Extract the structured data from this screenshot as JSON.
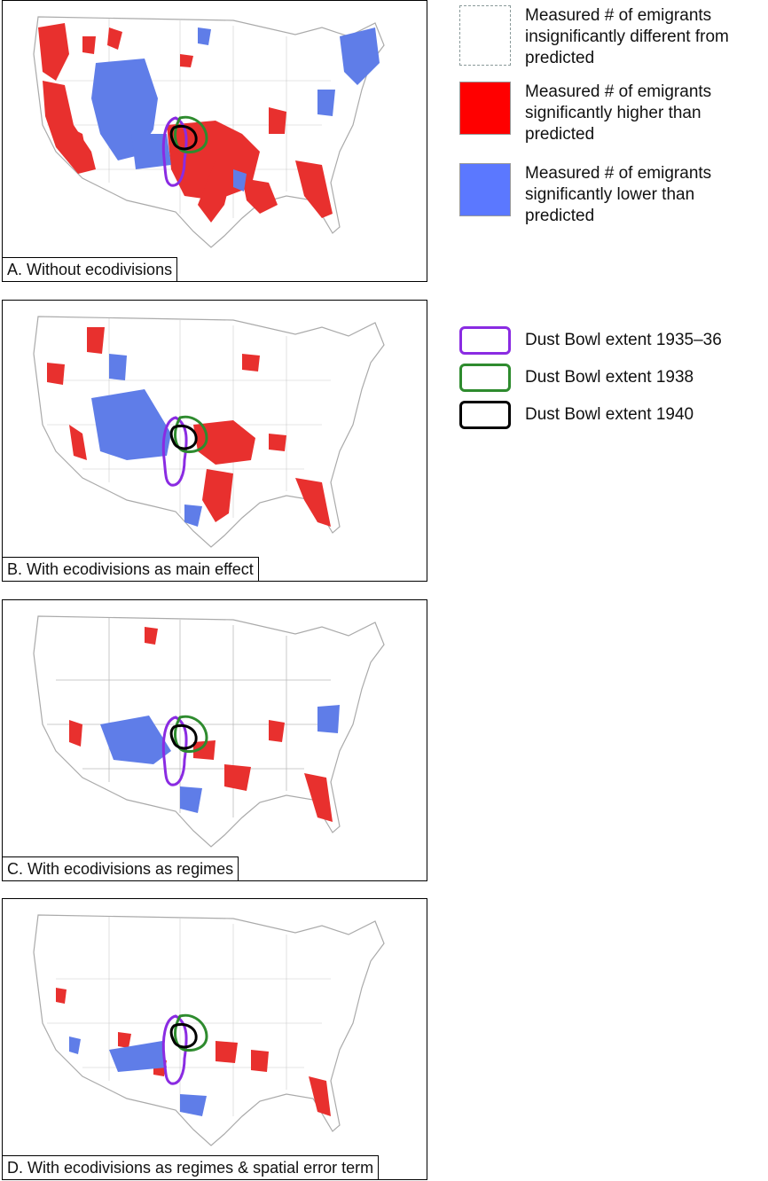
{
  "legend": {
    "insignificant": "Measured # of emigrants insignificantly different from predicted",
    "higher": "Measured # of emigrants significantly higher than predicted",
    "lower": "Measured # of emigrants significantly lower than predicted",
    "extent_1935": "Dust Bowl extent 1935–36",
    "extent_1938": "Dust Bowl extent 1938",
    "extent_1940": "Dust Bowl extent 1940"
  },
  "colors": {
    "higher": "#e8302e",
    "lower": "#5f7de8",
    "insignificant": "#ffffff",
    "extent_1935": "#8a2be2",
    "extent_1938": "#2e8b2e",
    "extent_1940": "#000000"
  },
  "panels": [
    {
      "label": "A. Without ecodivisions"
    },
    {
      "label": "B. With ecodivisions as main effect"
    },
    {
      "label": "C. With ecodivisions as regimes"
    },
    {
      "label": "D. With ecodivisions as regimes & spatial error term"
    }
  ]
}
